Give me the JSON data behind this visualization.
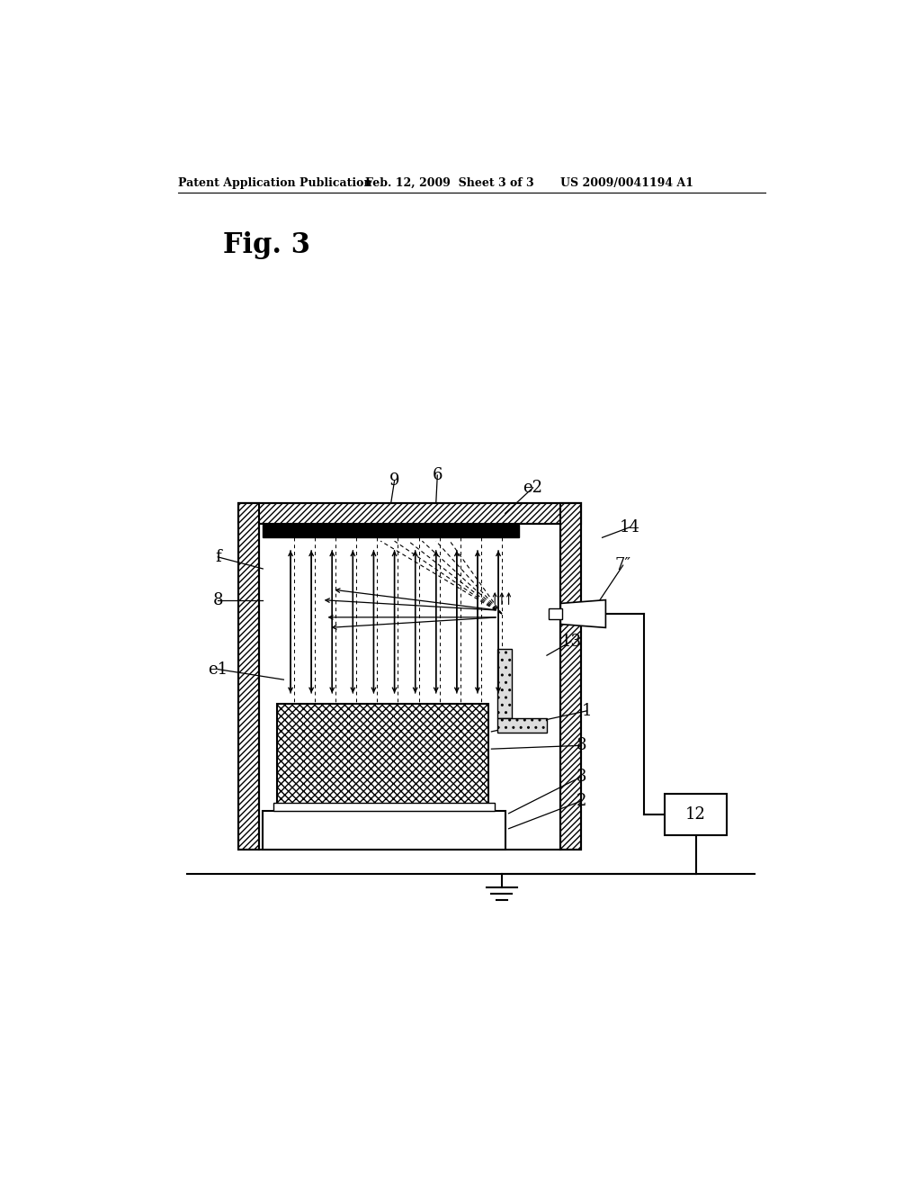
{
  "bg_color": "#ffffff",
  "lc": "#000000",
  "title_header": "Patent Application Publication",
  "title_date": "Feb. 12, 2009  Sheet 3 of 3",
  "title_patent": "US 2009/0041194 A1",
  "fig_label": "Fig. 3"
}
